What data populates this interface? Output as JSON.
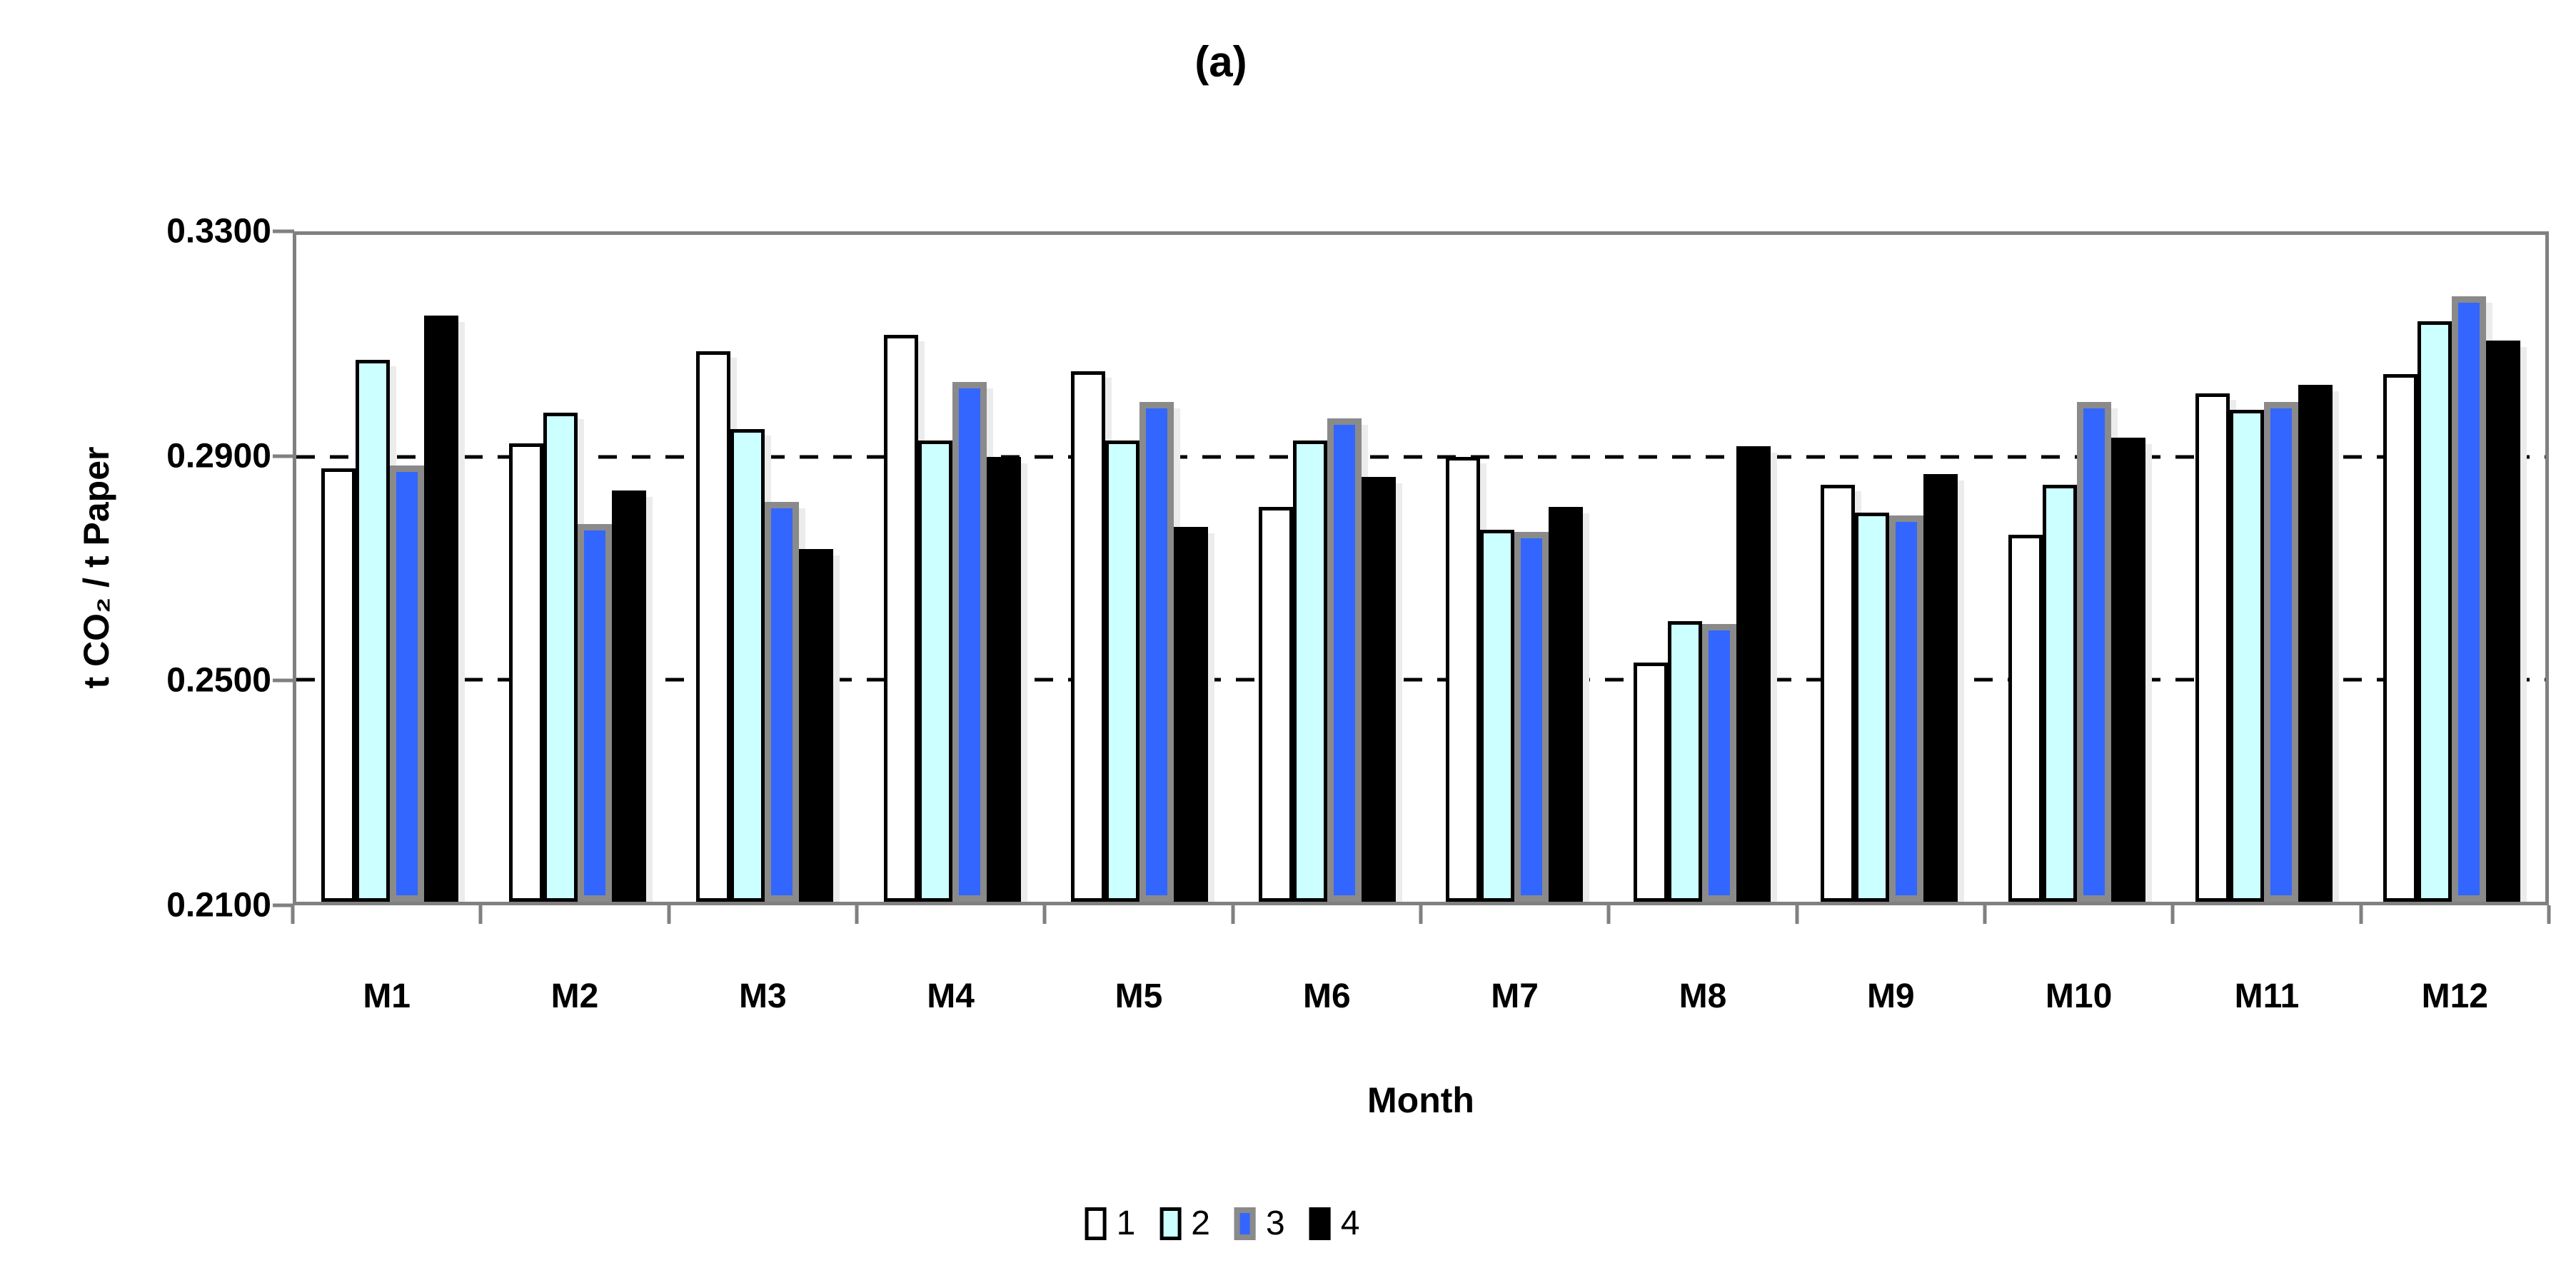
{
  "title": "(a)",
  "chart_data": {
    "type": "bar",
    "title": "(a)",
    "xlabel": "Month",
    "ylabel": "t CO₂ / t Paper",
    "ylim": [
      0.21,
      0.33
    ],
    "grid": "horizontal dashed lines at 0.2500 and 0.2900",
    "legend_position": "bottom-center",
    "frame_color": "#808080",
    "yticks": [
      {
        "label": "0.3300",
        "value": 0.33,
        "dashed": false
      },
      {
        "label": "0.2900",
        "value": 0.29,
        "dashed": true
      },
      {
        "label": "0.2500",
        "value": 0.25,
        "dashed": true
      },
      {
        "label": "0.2100",
        "value": 0.21,
        "dashed": false
      }
    ],
    "categories": [
      "M1",
      "M2",
      "M3",
      "M4",
      "M5",
      "M6",
      "M7",
      "M8",
      "M9",
      "M10",
      "M11",
      "M12"
    ],
    "series": [
      {
        "name": "1",
        "fill": "#ffffff",
        "border": "#000000",
        "values": [
          0.288,
          0.2925,
          0.309,
          0.312,
          0.3055,
          0.281,
          0.29,
          0.253,
          0.285,
          0.276,
          0.3015,
          0.305
        ]
      },
      {
        "name": "2",
        "fill": "#ccffff",
        "border": "#000000",
        "values": [
          0.3075,
          0.298,
          0.295,
          0.293,
          0.293,
          0.293,
          0.277,
          0.2605,
          0.28,
          0.285,
          0.2985,
          0.3145
        ]
      },
      {
        "name": "3",
        "fill": "#3366ff",
        "border": "#8a8a8a",
        "values": [
          0.2885,
          0.278,
          0.282,
          0.3035,
          0.3,
          0.297,
          0.2765,
          0.26,
          0.2795,
          0.3,
          0.3,
          0.319
        ]
      },
      {
        "name": "4",
        "fill": "#000000",
        "border": "#000000",
        "values": [
          0.3155,
          0.284,
          0.2735,
          0.29,
          0.2775,
          0.2865,
          0.281,
          0.292,
          0.287,
          0.2935,
          0.303,
          0.311
        ]
      }
    ]
  }
}
